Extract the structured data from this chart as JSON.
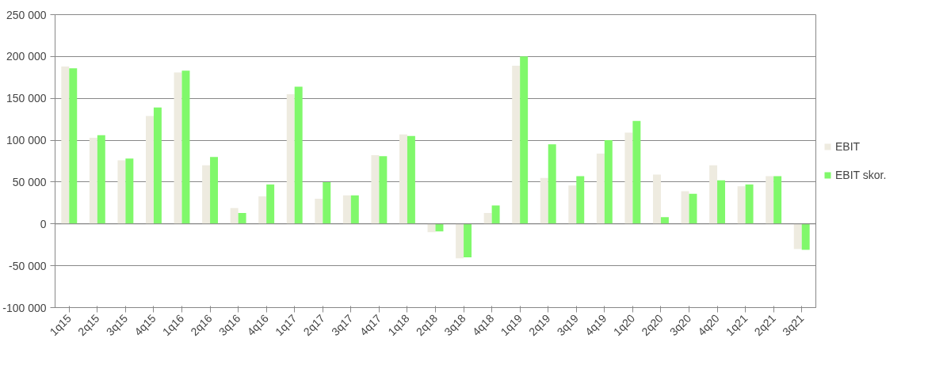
{
  "chart_data": {
    "type": "bar",
    "categories": [
      "1q15",
      "2q15",
      "3q15",
      "4q15",
      "1q16",
      "2q16",
      "3q16",
      "4q16",
      "1q17",
      "2q17",
      "3q17",
      "4q17",
      "1q18",
      "2q18",
      "3q18",
      "4q18",
      "1q19",
      "2q19",
      "3q19",
      "4q19",
      "1q20",
      "2q20",
      "3q20",
      "4q20",
      "1q21",
      "2q21",
      "3q21"
    ],
    "series": [
      {
        "name": "EBIT",
        "color": "#eeebe0",
        "values": [
          188000,
          103000,
          76000,
          129000,
          181000,
          70000,
          19000,
          33000,
          155000,
          30000,
          34000,
          82000,
          107000,
          -10000,
          -41000,
          13000,
          189000,
          55000,
          46000,
          84000,
          109000,
          59000,
          39000,
          70000,
          45000,
          57000,
          -30000
        ]
      },
      {
        "name": "EBIT skor.",
        "color": "#80f86b",
        "values": [
          186000,
          106000,
          78000,
          139000,
          183000,
          80000,
          13000,
          47000,
          164000,
          50000,
          34000,
          81000,
          105000,
          -9000,
          -40000,
          22000,
          200000,
          95000,
          57000,
          100000,
          123000,
          8000,
          36000,
          52000,
          47000,
          57000,
          -31000
        ]
      }
    ],
    "ylim": [
      -100000,
      250000
    ],
    "yticks": [
      {
        "value": -100000,
        "label": "-100 000"
      },
      {
        "value": -50000,
        "label": "-50 000"
      },
      {
        "value": 0,
        "label": "0"
      },
      {
        "value": 50000,
        "label": "50 000"
      },
      {
        "value": 100000,
        "label": "100 000"
      },
      {
        "value": 150000,
        "label": "150 000"
      },
      {
        "value": 200000,
        "label": "200 000"
      },
      {
        "value": 250000,
        "label": "250 000"
      }
    ],
    "grid": "y",
    "legend": "right"
  }
}
